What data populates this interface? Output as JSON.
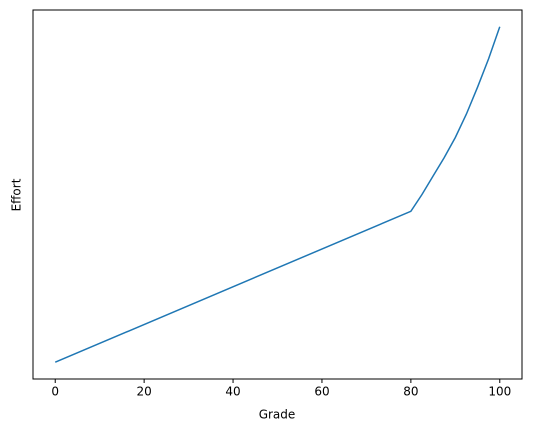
{
  "chart_data": {
    "type": "line",
    "xlabel": "Grade",
    "ylabel": "Effort",
    "x": [
      0,
      80,
      82.5,
      85,
      87.5,
      90,
      92.5,
      95,
      97.5,
      100
    ],
    "series": [
      {
        "name": "Effort",
        "color": "#1f77b4",
        "values": [
          0,
          45,
          50,
          55.5,
          61,
          67,
          74,
          82,
          90.5,
          100
        ]
      }
    ],
    "xlim": [
      -5,
      105
    ],
    "ylim": [
      -5,
      105
    ],
    "xticks": [
      0,
      20,
      40,
      60,
      80,
      100
    ],
    "yticks": []
  }
}
